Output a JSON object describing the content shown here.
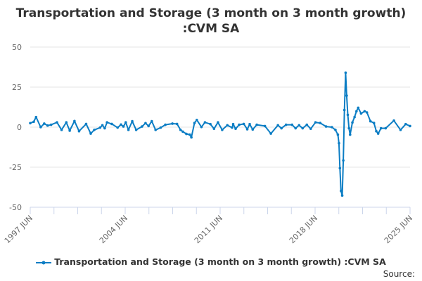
{
  "chart_data": {
    "type": "line",
    "title_line1": "Transportation and Storage (3 month on 3 month growth)",
    "title_line2": ":CVM SA",
    "xlabel": "",
    "ylabel": "",
    "ylim": [
      -50,
      50
    ],
    "yticks": [
      "50",
      "25",
      "0",
      "-25",
      "-50"
    ],
    "ytick_values": [
      50,
      25,
      0,
      -25,
      -50
    ],
    "xlim": [
      1997.42,
      2025.42
    ],
    "xtick_labels": [
      "1997 JUN",
      "2004 JUN",
      "2011 JUN",
      "2018 JUN",
      "2025 JUN"
    ],
    "xtick_values": [
      1997.42,
      2004.42,
      2011.42,
      2018.42,
      2025.42
    ],
    "grid": true,
    "legend_position": "bottom",
    "series": [
      {
        "name": "Transportation and Storage (3 month on 3 month growth) :CVM SA",
        "color": "#0b7dc4",
        "points": [
          [
            1997.42,
            2.5
          ],
          [
            1997.68,
            3.4
          ],
          [
            1997.85,
            6.3
          ],
          [
            1998.19,
            0
          ],
          [
            1998.45,
            2.2
          ],
          [
            1998.7,
            1
          ],
          [
            1998.96,
            1.5
          ],
          [
            1999.39,
            3
          ],
          [
            1999.73,
            -1.7
          ],
          [
            2000.08,
            3
          ],
          [
            2000.33,
            -2.2
          ],
          [
            2000.68,
            3.8
          ],
          [
            2001.02,
            -2.5
          ],
          [
            2001.54,
            2
          ],
          [
            2001.88,
            -4
          ],
          [
            2002.14,
            -1.7
          ],
          [
            2002.57,
            -0.3
          ],
          [
            2002.74,
            1.2
          ],
          [
            2002.91,
            -0.7
          ],
          [
            2003.08,
            3
          ],
          [
            2003.43,
            2
          ],
          [
            2003.86,
            -0.3
          ],
          [
            2004.11,
            1.6
          ],
          [
            2004.29,
            0.4
          ],
          [
            2004.46,
            3
          ],
          [
            2004.66,
            -1.7
          ],
          [
            2004.94,
            3.7
          ],
          [
            2005.23,
            -1.7
          ],
          [
            2005.66,
            0.4
          ],
          [
            2005.92,
            2.5
          ],
          [
            2006.14,
            0.7
          ],
          [
            2006.38,
            3.7
          ],
          [
            2006.66,
            -1.7
          ],
          [
            2007.04,
            -0.3
          ],
          [
            2007.38,
            1.5
          ],
          [
            2007.9,
            2.2
          ],
          [
            2008.24,
            2
          ],
          [
            2008.5,
            -1.7
          ],
          [
            2008.67,
            -2.8
          ],
          [
            2008.93,
            -4.2
          ],
          [
            2009.18,
            -4.7
          ],
          [
            2009.3,
            -6.4
          ],
          [
            2009.53,
            2.6
          ],
          [
            2009.7,
            4.5
          ],
          [
            2010.04,
            0.1
          ],
          [
            2010.3,
            3
          ],
          [
            2010.7,
            1.9
          ],
          [
            2010.97,
            -1
          ],
          [
            2011.26,
            3
          ],
          [
            2011.57,
            -1.7
          ],
          [
            2011.95,
            1.2
          ],
          [
            2012.3,
            -0.3
          ],
          [
            2012.38,
            1.9
          ],
          [
            2012.56,
            -1
          ],
          [
            2012.82,
            1.5
          ],
          [
            2013.16,
            2
          ],
          [
            2013.42,
            -1.3
          ],
          [
            2013.6,
            1.9
          ],
          [
            2013.82,
            -1.5
          ],
          [
            2014.12,
            1.5
          ],
          [
            2014.72,
            0.7
          ],
          [
            2015.16,
            -4
          ],
          [
            2015.68,
            1.2
          ],
          [
            2015.94,
            -0.7
          ],
          [
            2016.28,
            1.5
          ],
          [
            2016.72,
            1.5
          ],
          [
            2016.98,
            -0.7
          ],
          [
            2017.24,
            1.2
          ],
          [
            2017.5,
            -0.7
          ],
          [
            2017.81,
            1.5
          ],
          [
            2018.1,
            -1
          ],
          [
            2018.45,
            3
          ],
          [
            2018.8,
            2.6
          ],
          [
            2019.23,
            0.4
          ],
          [
            2019.66,
            0
          ],
          [
            2019.92,
            -1.7
          ],
          [
            2020.1,
            -4.7
          ],
          [
            2020.18,
            -10
          ],
          [
            2020.25,
            -25.6
          ],
          [
            2020.33,
            -39.8
          ],
          [
            2020.42,
            -42.7
          ],
          [
            2020.5,
            -20.8
          ],
          [
            2020.58,
            10.7
          ],
          [
            2020.67,
            34
          ],
          [
            2020.75,
            19.7
          ],
          [
            2020.83,
            7.7
          ],
          [
            2020.92,
            -0.7
          ],
          [
            2021.0,
            -4.7
          ],
          [
            2021.17,
            2.9
          ],
          [
            2021.33,
            6.3
          ],
          [
            2021.47,
            9.9
          ],
          [
            2021.6,
            12.1
          ],
          [
            2021.81,
            8.5
          ],
          [
            2022.07,
            9.9
          ],
          [
            2022.24,
            9.2
          ],
          [
            2022.5,
            3.7
          ],
          [
            2022.76,
            2.6
          ],
          [
            2022.93,
            -2.5
          ],
          [
            2023.07,
            -4
          ],
          [
            2023.28,
            -0.7
          ],
          [
            2023.62,
            -0.7
          ],
          [
            2024.23,
            4.1
          ],
          [
            2024.72,
            -1.7
          ],
          [
            2025.1,
            1.9
          ],
          [
            2025.42,
            0.7
          ]
        ]
      }
    ],
    "source_label": "Source:"
  }
}
